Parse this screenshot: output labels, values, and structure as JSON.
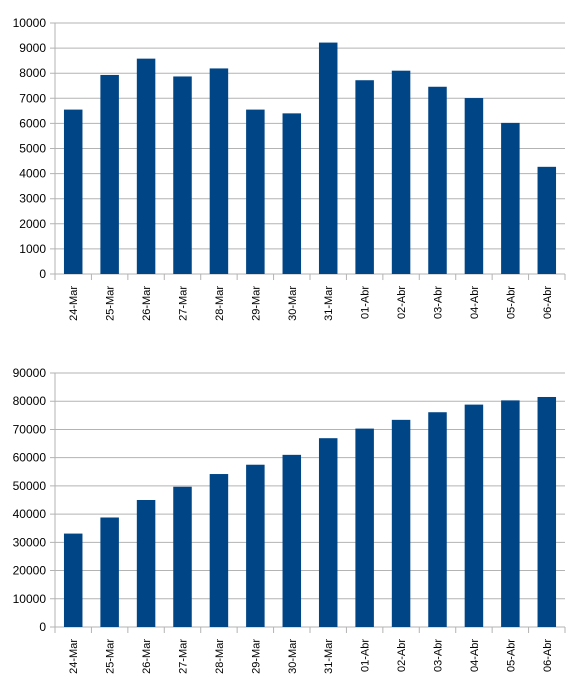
{
  "chart_data": [
    {
      "type": "bar",
      "title": "",
      "xlabel": "",
      "ylabel": "",
      "ylim": [
        0,
        10000
      ],
      "ytick_step": 1000,
      "grid": true,
      "bar_color": "#004586",
      "categories": [
        "24-Mar",
        "25-Mar",
        "26-Mar",
        "27-Mar",
        "28-Mar",
        "29-Mar",
        "30-Mar",
        "31-Mar",
        "01-Abr",
        "02-Abr",
        "03-Abr",
        "04-Abr",
        "05-Abr",
        "06-Abr"
      ],
      "values": [
        6550,
        7930,
        8580,
        7870,
        8190,
        6550,
        6400,
        9220,
        7720,
        8100,
        7460,
        7010,
        6020,
        4270
      ]
    },
    {
      "type": "bar",
      "title": "",
      "xlabel": "",
      "ylabel": "",
      "ylim": [
        0,
        90000
      ],
      "ytick_step": 10000,
      "grid": true,
      "bar_color": "#004586",
      "categories": [
        "24-Mar",
        "25-Mar",
        "26-Mar",
        "27-Mar",
        "28-Mar",
        "29-Mar",
        "30-Mar",
        "31-Mar",
        "01-Abr",
        "02-Abr",
        "03-Abr",
        "04-Abr",
        "05-Abr",
        "06-Abr"
      ],
      "values": [
        33100,
        38800,
        45000,
        49700,
        54200,
        57500,
        61000,
        66900,
        70300,
        73400,
        76100,
        78800,
        80300,
        81500
      ]
    }
  ]
}
